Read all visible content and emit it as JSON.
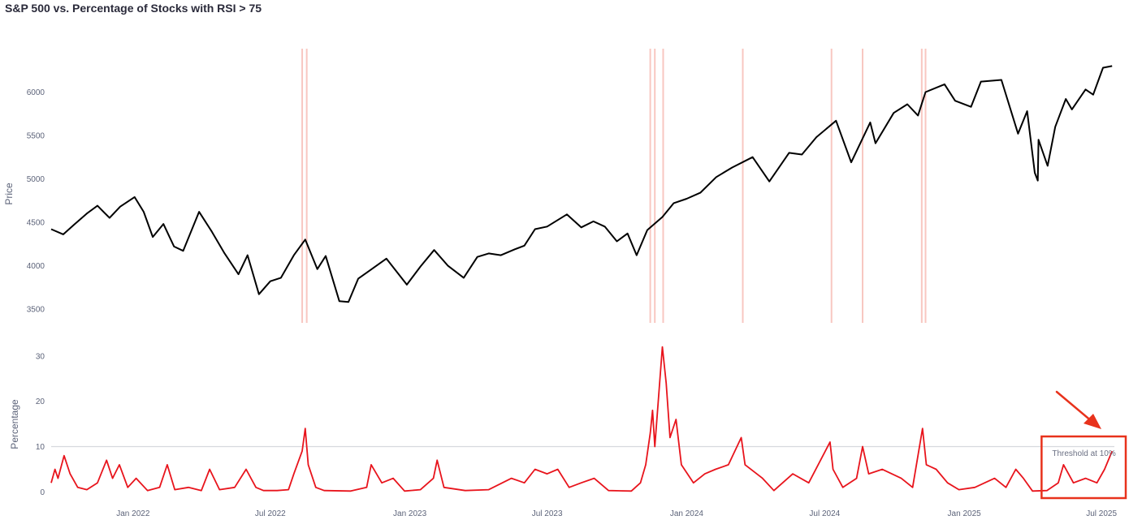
{
  "chart_data": {
    "type": "line",
    "title": "S&P 500 vs. Percentage of Stocks with RSI > 75",
    "x_tick_labels": [
      "Jan 2022",
      "Jul 2022",
      "Jan 2023",
      "Jul 2023",
      "Jan 2024",
      "Jul 2024",
      "Jan 2025",
      "Jul 2025"
    ],
    "x_tick_dates": [
      "2022-01-01",
      "2022-07-01",
      "2023-01-01",
      "2023-07-01",
      "2024-01-01",
      "2024-07-01",
      "2025-01-01",
      "2025-07-01"
    ],
    "x_range": [
      "2021-09-15",
      "2025-07-18"
    ],
    "price_panel": {
      "ylabel": "Price",
      "ylim": [
        3340,
        6500
      ],
      "y_ticks": [
        3500,
        4000,
        4500,
        5000,
        5500,
        6000
      ],
      "series_color": "#000000",
      "points": [
        [
          "2021-09-15",
          4420
        ],
        [
          "2021-10-01",
          4360
        ],
        [
          "2021-10-15",
          4470
        ],
        [
          "2021-11-01",
          4600
        ],
        [
          "2021-11-15",
          4690
        ],
        [
          "2021-12-01",
          4550
        ],
        [
          "2021-12-15",
          4680
        ],
        [
          "2022-01-03",
          4790
        ],
        [
          "2022-01-15",
          4620
        ],
        [
          "2022-01-27",
          4330
        ],
        [
          "2022-02-10",
          4480
        ],
        [
          "2022-02-24",
          4220
        ],
        [
          "2022-03-08",
          4170
        ],
        [
          "2022-03-29",
          4620
        ],
        [
          "2022-04-15",
          4390
        ],
        [
          "2022-05-01",
          4150
        ],
        [
          "2022-05-20",
          3900
        ],
        [
          "2022-06-01",
          4120
        ],
        [
          "2022-06-16",
          3670
        ],
        [
          "2022-07-01",
          3820
        ],
        [
          "2022-07-15",
          3860
        ],
        [
          "2022-08-01",
          4120
        ],
        [
          "2022-08-16",
          4300
        ],
        [
          "2022-09-01",
          3960
        ],
        [
          "2022-09-12",
          4110
        ],
        [
          "2022-09-30",
          3590
        ],
        [
          "2022-10-12",
          3580
        ],
        [
          "2022-10-25",
          3850
        ],
        [
          "2022-11-10",
          3950
        ],
        [
          "2022-12-01",
          4080
        ],
        [
          "2022-12-28",
          3780
        ],
        [
          "2023-01-15",
          3990
        ],
        [
          "2023-02-02",
          4180
        ],
        [
          "2023-02-20",
          4000
        ],
        [
          "2023-03-13",
          3860
        ],
        [
          "2023-03-31",
          4100
        ],
        [
          "2023-04-15",
          4140
        ],
        [
          "2023-05-01",
          4120
        ],
        [
          "2023-05-20",
          4190
        ],
        [
          "2023-06-01",
          4230
        ],
        [
          "2023-06-15",
          4420
        ],
        [
          "2023-07-01",
          4450
        ],
        [
          "2023-07-27",
          4590
        ],
        [
          "2023-08-15",
          4440
        ],
        [
          "2023-08-31",
          4510
        ],
        [
          "2023-09-15",
          4450
        ],
        [
          "2023-10-01",
          4280
        ],
        [
          "2023-10-15",
          4370
        ],
        [
          "2023-10-27",
          4120
        ],
        [
          "2023-11-10",
          4410
        ],
        [
          "2023-11-30",
          4560
        ],
        [
          "2023-12-15",
          4720
        ],
        [
          "2024-01-01",
          4770
        ],
        [
          "2024-01-19",
          4840
        ],
        [
          "2024-02-09",
          5020
        ],
        [
          "2024-03-01",
          5130
        ],
        [
          "2024-03-28",
          5250
        ],
        [
          "2024-04-19",
          4970
        ],
        [
          "2024-05-15",
          5300
        ],
        [
          "2024-06-01",
          5280
        ],
        [
          "2024-06-20",
          5480
        ],
        [
          "2024-07-16",
          5670
        ],
        [
          "2024-08-05",
          5190
        ],
        [
          "2024-08-30",
          5650
        ],
        [
          "2024-09-06",
          5410
        ],
        [
          "2024-09-30",
          5760
        ],
        [
          "2024-10-18",
          5860
        ],
        [
          "2024-11-01",
          5730
        ],
        [
          "2024-11-11",
          6000
        ],
        [
          "2024-12-06",
          6090
        ],
        [
          "2024-12-20",
          5900
        ],
        [
          "2025-01-10",
          5830
        ],
        [
          "2025-01-23",
          6120
        ],
        [
          "2025-02-19",
          6140
        ],
        [
          "2025-03-13",
          5520
        ],
        [
          "2025-03-25",
          5780
        ],
        [
          "2025-04-04",
          5070
        ],
        [
          "2025-04-08",
          4980
        ],
        [
          "2025-04-09",
          5450
        ],
        [
          "2025-04-21",
          5150
        ],
        [
          "2025-05-01",
          5600
        ],
        [
          "2025-05-15",
          5920
        ],
        [
          "2025-05-23",
          5800
        ],
        [
          "2025-06-10",
          6030
        ],
        [
          "2025-06-20",
          5970
        ],
        [
          "2025-07-03",
          6280
        ],
        [
          "2025-07-15",
          6300
        ]
      ],
      "highlight_band_dates": [
        "2022-08-12",
        "2022-08-18",
        "2023-11-14",
        "2023-11-20",
        "2023-12-01",
        "2024-03-15",
        "2024-07-10",
        "2024-08-20",
        "2024-11-06",
        "2024-11-11"
      ],
      "highlight_color": "#f8c7c1"
    },
    "percentage_panel": {
      "ylabel": "Percentage",
      "ylim": [
        -1,
        33
      ],
      "y_ticks": [
        0,
        10,
        20,
        30
      ],
      "series_color": "#e8141c",
      "threshold": 10,
      "threshold_color": "#d7d9de",
      "points": [
        [
          "2021-09-15",
          2
        ],
        [
          "2021-09-20",
          5
        ],
        [
          "2021-09-24",
          3
        ],
        [
          "2021-10-02",
          8
        ],
        [
          "2021-10-10",
          4
        ],
        [
          "2021-10-20",
          1
        ],
        [
          "2021-11-01",
          0.5
        ],
        [
          "2021-11-15",
          2
        ],
        [
          "2021-11-27",
          7
        ],
        [
          "2021-12-05",
          3
        ],
        [
          "2021-12-14",
          6
        ],
        [
          "2021-12-25",
          1
        ],
        [
          "2022-01-05",
          3
        ],
        [
          "2022-01-20",
          0.3
        ],
        [
          "2022-02-05",
          1
        ],
        [
          "2022-02-15",
          6
        ],
        [
          "2022-02-25",
          0.5
        ],
        [
          "2022-03-15",
          1
        ],
        [
          "2022-04-01",
          0.3
        ],
        [
          "2022-04-12",
          5
        ],
        [
          "2022-04-25",
          0.5
        ],
        [
          "2022-05-15",
          1
        ],
        [
          "2022-05-30",
          5
        ],
        [
          "2022-06-12",
          1
        ],
        [
          "2022-06-22",
          0.3
        ],
        [
          "2022-07-10",
          0.3
        ],
        [
          "2022-07-25",
          0.5
        ],
        [
          "2022-08-01",
          4
        ],
        [
          "2022-08-12",
          9
        ],
        [
          "2022-08-16",
          14
        ],
        [
          "2022-08-20",
          6
        ],
        [
          "2022-08-30",
          1
        ],
        [
          "2022-09-10",
          0.3
        ],
        [
          "2022-10-15",
          0.2
        ],
        [
          "2022-11-05",
          1
        ],
        [
          "2022-11-11",
          6
        ],
        [
          "2022-11-25",
          2
        ],
        [
          "2022-12-10",
          3
        ],
        [
          "2022-12-25",
          0.2
        ],
        [
          "2023-01-15",
          0.5
        ],
        [
          "2023-02-01",
          3
        ],
        [
          "2023-02-06",
          7
        ],
        [
          "2023-02-15",
          1
        ],
        [
          "2023-03-15",
          0.3
        ],
        [
          "2023-04-15",
          0.5
        ],
        [
          "2023-05-15",
          3
        ],
        [
          "2023-06-01",
          2
        ],
        [
          "2023-06-15",
          5
        ],
        [
          "2023-07-01",
          4
        ],
        [
          "2023-07-15",
          5
        ],
        [
          "2023-07-30",
          1
        ],
        [
          "2023-08-15",
          2
        ],
        [
          "2023-09-01",
          3
        ],
        [
          "2023-09-20",
          0.3
        ],
        [
          "2023-10-20",
          0.2
        ],
        [
          "2023-11-01",
          2
        ],
        [
          "2023-11-08",
          6
        ],
        [
          "2023-11-14",
          13
        ],
        [
          "2023-11-17",
          18
        ],
        [
          "2023-11-20",
          10
        ],
        [
          "2023-11-30",
          32
        ],
        [
          "2023-12-05",
          24
        ],
        [
          "2023-12-10",
          12
        ],
        [
          "2023-12-18",
          16
        ],
        [
          "2023-12-25",
          6
        ],
        [
          "2024-01-10",
          2
        ],
        [
          "2024-01-25",
          4
        ],
        [
          "2024-02-08",
          5
        ],
        [
          "2024-02-25",
          6
        ],
        [
          "2024-03-13",
          12
        ],
        [
          "2024-03-18",
          6
        ],
        [
          "2024-04-10",
          3
        ],
        [
          "2024-04-25",
          0.3
        ],
        [
          "2024-05-20",
          4
        ],
        [
          "2024-06-10",
          2
        ],
        [
          "2024-07-08",
          11
        ],
        [
          "2024-07-12",
          5
        ],
        [
          "2024-07-25",
          1
        ],
        [
          "2024-08-12",
          3
        ],
        [
          "2024-08-20",
          10
        ],
        [
          "2024-08-28",
          4
        ],
        [
          "2024-09-15",
          5
        ],
        [
          "2024-10-10",
          3
        ],
        [
          "2024-10-25",
          1
        ],
        [
          "2024-11-07",
          14
        ],
        [
          "2024-11-12",
          6
        ],
        [
          "2024-11-25",
          5
        ],
        [
          "2024-12-10",
          2
        ],
        [
          "2024-12-25",
          0.5
        ],
        [
          "2025-01-15",
          1
        ],
        [
          "2025-02-10",
          3
        ],
        [
          "2025-02-25",
          1
        ],
        [
          "2025-03-10",
          5
        ],
        [
          "2025-03-20",
          3
        ],
        [
          "2025-04-01",
          0.2
        ],
        [
          "2025-04-20",
          0.3
        ],
        [
          "2025-05-05",
          2
        ],
        [
          "2025-05-12",
          6
        ],
        [
          "2025-05-25",
          2
        ],
        [
          "2025-06-10",
          3
        ],
        [
          "2025-06-25",
          2
        ],
        [
          "2025-07-05",
          5
        ],
        [
          "2025-07-15",
          9
        ]
      ]
    },
    "annotation": {
      "text": "Threshold at 10%",
      "box_color": "#e8321c",
      "arrow_color": "#e8321c"
    }
  }
}
